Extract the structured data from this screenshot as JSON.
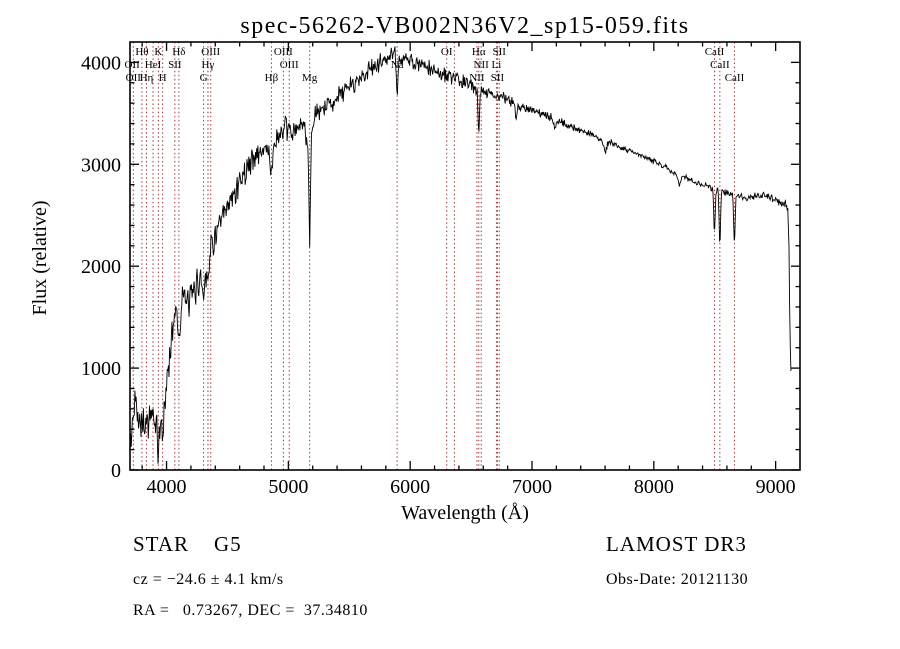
{
  "chart_data": {
    "type": "line",
    "title": "spec-56262-VB002N36V2_sp15-059.fits",
    "xlabel": "Wavelength (Å)",
    "ylabel": "Flux (relative)",
    "xlim": [
      3700,
      9200
    ],
    "ylim": [
      0,
      4200
    ],
    "xticks": [
      4000,
      5000,
      6000,
      7000,
      8000,
      9000
    ],
    "yticks": [
      0,
      1000,
      2000,
      3000,
      4000
    ],
    "x_minor_step": 200,
    "y_minor_step": 200,
    "legend": "none",
    "grid": false,
    "colors": {
      "spectrum": "#000000",
      "line_marker": "#9a3b3b",
      "text": "#000000",
      "background": "#ffffff"
    },
    "spectral_lines": [
      3727,
      3798,
      3835,
      3889,
      3933,
      3968,
      4068,
      4101,
      4304,
      4340,
      4363,
      4861,
      4959,
      5007,
      5175,
      5893,
      6300,
      6363,
      6548,
      6563,
      6583,
      6708,
      6716,
      6731,
      8498,
      8542,
      8662
    ],
    "line_labels": [
      {
        "text": "Hθ",
        "wl": 3798,
        "row": 0
      },
      {
        "text": "K",
        "wl": 3933,
        "row": 0
      },
      {
        "text": "Hδ",
        "wl": 4101,
        "row": 0
      },
      {
        "text": "OII",
        "wl": 3718,
        "row": 1
      },
      {
        "text": "HeI",
        "wl": 3889,
        "row": 1
      },
      {
        "text": "SII",
        "wl": 4068,
        "row": 1
      },
      {
        "text": "OII",
        "wl": 3727,
        "row": 2
      },
      {
        "text": "Hη",
        "wl": 3835,
        "row": 2
      },
      {
        "text": "H",
        "wl": 3968,
        "row": 2
      },
      {
        "text": "OIII",
        "wl": 4363,
        "row": 0
      },
      {
        "text": "Hγ",
        "wl": 4340,
        "row": 1
      },
      {
        "text": "G",
        "wl": 4304,
        "row": 2
      },
      {
        "text": "OIII",
        "wl": 4959,
        "row": 0
      },
      {
        "text": "OIII",
        "wl": 5007,
        "row": 1
      },
      {
        "text": "Hβ",
        "wl": 4861,
        "row": 2
      },
      {
        "text": "Mg",
        "wl": 5175,
        "row": 2
      },
      {
        "text": "Na",
        "wl": 5893,
        "row": 1
      },
      {
        "text": "OI",
        "wl": 6300,
        "row": 0
      },
      {
        "text": "Hα",
        "wl": 6563,
        "row": 0
      },
      {
        "text": "SII",
        "wl": 6731,
        "row": 0
      },
      {
        "text": "NII",
        "wl": 6583,
        "row": 1
      },
      {
        "text": "Li",
        "wl": 6708,
        "row": 1
      },
      {
        "text": "NII",
        "wl": 6548,
        "row": 2
      },
      {
        "text": "SII",
        "wl": 6716,
        "row": 2
      },
      {
        "text": "CaII",
        "wl": 8498,
        "row": 0
      },
      {
        "text": "CaII",
        "wl": 8542,
        "row": 1
      },
      {
        "text": "CaII",
        "wl": 8662,
        "row": 2
      }
    ],
    "spectrum": {
      "start": 3700,
      "end": 9125,
      "step": 5,
      "noise_seed": 42,
      "continuum": [
        [
          3700,
          150
        ],
        [
          3715,
          380
        ],
        [
          3730,
          520
        ],
        [
          3745,
          800
        ],
        [
          3760,
          640
        ],
        [
          3775,
          450
        ],
        [
          3790,
          540
        ],
        [
          3810,
          470
        ],
        [
          3830,
          430
        ],
        [
          3850,
          500
        ],
        [
          3870,
          540
        ],
        [
          3890,
          500
        ],
        [
          3910,
          420
        ],
        [
          3930,
          430
        ],
        [
          3950,
          500
        ],
        [
          3970,
          560
        ],
        [
          3990,
          700
        ],
        [
          4010,
          950
        ],
        [
          4030,
          1180
        ],
        [
          4050,
          1400
        ],
        [
          4070,
          1560
        ],
        [
          4090,
          1580
        ],
        [
          4110,
          1540
        ],
        [
          4130,
          1680
        ],
        [
          4150,
          1700
        ],
        [
          4170,
          1620
        ],
        [
          4190,
          1660
        ],
        [
          4210,
          1700
        ],
        [
          4230,
          1760
        ],
        [
          4250,
          1820
        ],
        [
          4270,
          1870
        ],
        [
          4290,
          1900
        ],
        [
          4310,
          1950
        ],
        [
          4330,
          2040
        ],
        [
          4350,
          2130
        ],
        [
          4375,
          2220
        ],
        [
          4400,
          2300
        ],
        [
          4430,
          2380
        ],
        [
          4460,
          2460
        ],
        [
          4500,
          2560
        ],
        [
          4540,
          2660
        ],
        [
          4580,
          2790
        ],
        [
          4620,
          2880
        ],
        [
          4660,
          2960
        ],
        [
          4700,
          3040
        ],
        [
          4740,
          3090
        ],
        [
          4780,
          3130
        ],
        [
          4820,
          3160
        ],
        [
          4860,
          3160
        ],
        [
          4900,
          3240
        ],
        [
          4940,
          3290
        ],
        [
          4980,
          3340
        ],
        [
          5020,
          3330
        ],
        [
          5060,
          3310
        ],
        [
          5100,
          3390
        ],
        [
          5140,
          3360
        ],
        [
          5180,
          3380
        ],
        [
          5220,
          3460
        ],
        [
          5260,
          3510
        ],
        [
          5300,
          3550
        ],
        [
          5350,
          3610
        ],
        [
          5400,
          3660
        ],
        [
          5450,
          3710
        ],
        [
          5500,
          3760
        ],
        [
          5550,
          3810
        ],
        [
          5600,
          3860
        ],
        [
          5650,
          3910
        ],
        [
          5700,
          3950
        ],
        [
          5750,
          3990
        ],
        [
          5800,
          4030
        ],
        [
          5850,
          4070
        ],
        [
          5880,
          4090
        ],
        [
          5920,
          4060
        ],
        [
          5960,
          4030
        ],
        [
          6000,
          4010
        ],
        [
          6050,
          3990
        ],
        [
          6100,
          3960
        ],
        [
          6150,
          3940
        ],
        [
          6200,
          3920
        ],
        [
          6250,
          3890
        ],
        [
          6300,
          3870
        ],
        [
          6350,
          3840
        ],
        [
          6400,
          3820
        ],
        [
          6450,
          3800
        ],
        [
          6500,
          3780
        ],
        [
          6550,
          3750
        ],
        [
          6600,
          3730
        ],
        [
          6650,
          3700
        ],
        [
          6700,
          3680
        ],
        [
          6750,
          3660
        ],
        [
          6800,
          3630
        ],
        [
          6850,
          3610
        ],
        [
          6900,
          3580
        ],
        [
          6950,
          3560
        ],
        [
          7000,
          3530
        ],
        [
          7050,
          3510
        ],
        [
          7100,
          3480
        ],
        [
          7150,
          3460
        ],
        [
          7200,
          3430
        ],
        [
          7250,
          3410
        ],
        [
          7300,
          3380
        ],
        [
          7350,
          3360
        ],
        [
          7400,
          3330
        ],
        [
          7450,
          3310
        ],
        [
          7500,
          3280
        ],
        [
          7550,
          3260
        ],
        [
          7600,
          3230
        ],
        [
          7650,
          3210
        ],
        [
          7700,
          3180
        ],
        [
          7750,
          3160
        ],
        [
          7800,
          3130
        ],
        [
          7850,
          3110
        ],
        [
          7900,
          3080
        ],
        [
          7950,
          3060
        ],
        [
          8000,
          3030
        ],
        [
          8050,
          3000
        ],
        [
          8100,
          2970
        ],
        [
          8150,
          2930
        ],
        [
          8200,
          2890
        ],
        [
          8250,
          2870
        ],
        [
          8300,
          2850
        ],
        [
          8350,
          2820
        ],
        [
          8400,
          2800
        ],
        [
          8450,
          2780
        ],
        [
          8500,
          2760
        ],
        [
          8550,
          2740
        ],
        [
          8600,
          2720
        ],
        [
          8650,
          2700
        ],
        [
          8700,
          2690
        ],
        [
          8750,
          2680
        ],
        [
          8800,
          2680
        ],
        [
          8850,
          2690
        ],
        [
          8900,
          2700
        ],
        [
          8930,
          2680
        ],
        [
          8960,
          2660
        ],
        [
          9000,
          2640
        ],
        [
          9040,
          2620
        ],
        [
          9080,
          2600
        ],
        [
          9100,
          2560
        ],
        [
          9110,
          2200
        ],
        [
          9118,
          1300
        ],
        [
          9125,
          980
        ]
      ],
      "absorption": [
        [
          3933,
          8,
          260
        ],
        [
          3968,
          8,
          200
        ],
        [
          4101,
          8,
          220
        ],
        [
          4304,
          12,
          170
        ],
        [
          4340,
          8,
          200
        ],
        [
          4861,
          8,
          300
        ],
        [
          5175,
          6,
          950
        ],
        [
          5172,
          18,
          180
        ],
        [
          5893,
          7,
          420
        ],
        [
          6563,
          7,
          400
        ],
        [
          6870,
          9,
          130
        ],
        [
          7190,
          9,
          80
        ],
        [
          7600,
          12,
          110
        ],
        [
          8210,
          8,
          90
        ],
        [
          8498,
          6,
          420
        ],
        [
          8542,
          6,
          520
        ],
        [
          8662,
          6,
          480
        ]
      ],
      "noise_amp": [
        [
          3700,
          135
        ],
        [
          3850,
          115
        ],
        [
          4000,
          105
        ],
        [
          4200,
          100
        ],
        [
          4400,
          92
        ],
        [
          4600,
          85
        ],
        [
          4800,
          80
        ],
        [
          5000,
          76
        ],
        [
          5200,
          72
        ],
        [
          5400,
          65
        ],
        [
          5600,
          60
        ],
        [
          5800,
          56
        ],
        [
          6000,
          52
        ],
        [
          6200,
          48
        ],
        [
          6400,
          44
        ],
        [
          6600,
          40
        ],
        [
          6800,
          34
        ],
        [
          7000,
          27
        ],
        [
          7200,
          24
        ],
        [
          7500,
          21
        ],
        [
          8000,
          17
        ],
        [
          8400,
          18
        ],
        [
          8700,
          22
        ],
        [
          9000,
          26
        ]
      ]
    }
  },
  "footer": {
    "class_line": "STAR    G5",
    "cz_line": "cz = −24.6 ± 4.1 km/s",
    "radec_line": "RA =   0.73267, DEC =  37.34810",
    "survey": "LAMOST DR3",
    "obs_date": "Obs-Date: 20121130"
  }
}
